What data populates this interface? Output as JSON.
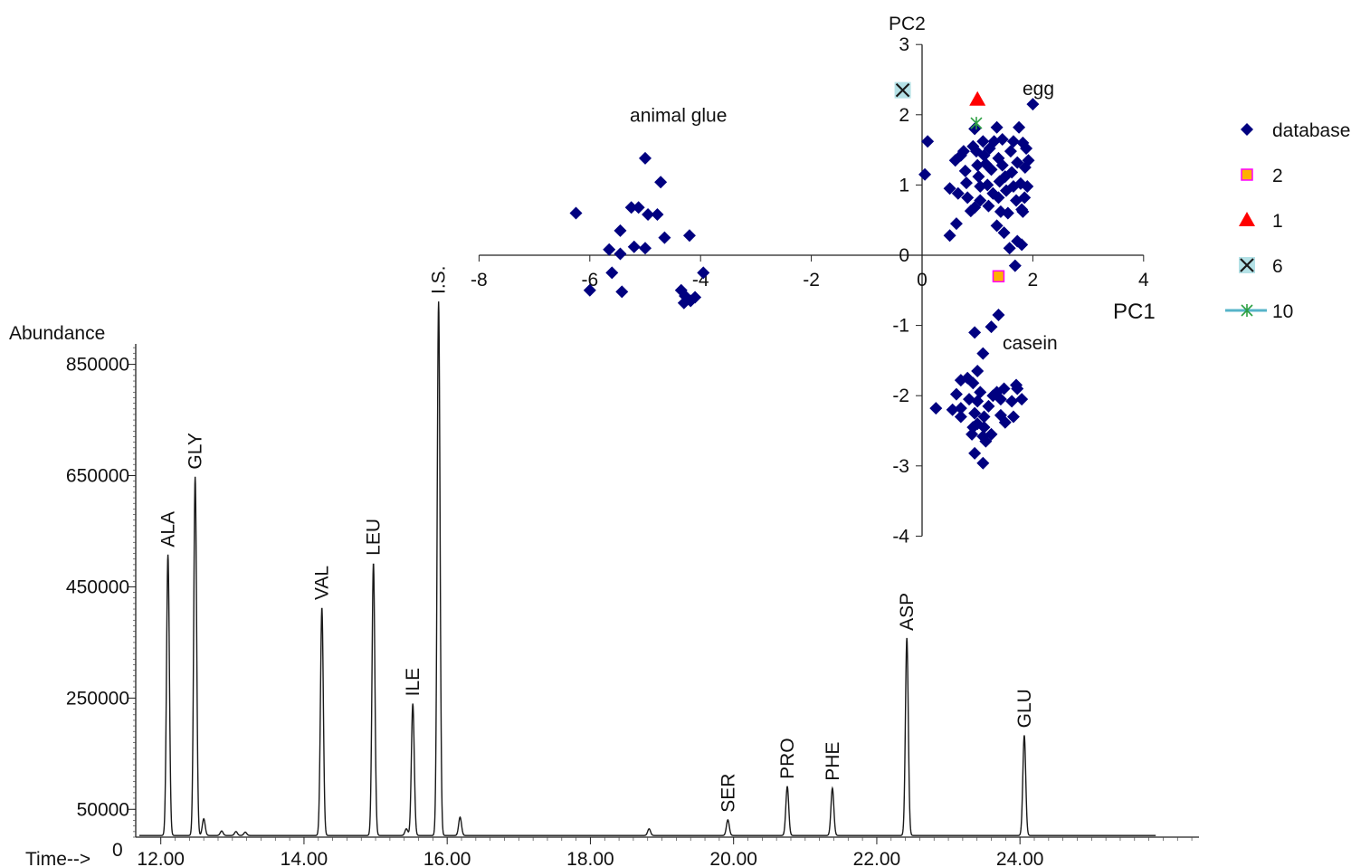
{
  "chart_data": [
    {
      "type": "line",
      "title": "",
      "ylabel": "Abundance",
      "xlabel": "Time-->",
      "y_zero_label": "0",
      "xlim": [
        11.65,
        26.5
      ],
      "ylim": [
        0,
        960000
      ],
      "x_ticks": [
        "12.00",
        "14.00",
        "16.00",
        "18.00",
        "20.00",
        "22.00",
        "24.00"
      ],
      "y_ticks": [
        "50000",
        "250000",
        "450000",
        "650000",
        "850000"
      ],
      "baseline": 3000,
      "peaks": [
        {
          "label": "ALA",
          "t": 12.1,
          "h": 505000
        },
        {
          "label": "GLY",
          "t": 12.48,
          "h": 645000
        },
        {
          "label": "VAL",
          "t": 14.25,
          "h": 410000
        },
        {
          "label": "LEU",
          "t": 14.97,
          "h": 490000
        },
        {
          "label": "ILE",
          "t": 15.52,
          "h": 237000
        },
        {
          "label": "I.S.",
          "t": 15.88,
          "h": 960000
        },
        {
          "label": "SER",
          "t": 19.92,
          "h": 28000
        },
        {
          "label": "PRO",
          "t": 20.75,
          "h": 88000
        },
        {
          "label": "PHE",
          "t": 21.38,
          "h": 85000
        },
        {
          "label": "ASP",
          "t": 22.42,
          "h": 355000
        },
        {
          "label": "GLU",
          "t": 24.06,
          "h": 180000
        }
      ],
      "minor_peaks": [
        {
          "t": 12.6,
          "h": 30000
        },
        {
          "t": 12.85,
          "h": 8000
        },
        {
          "t": 13.05,
          "h": 7000
        },
        {
          "t": 13.18,
          "h": 6000
        },
        {
          "t": 15.43,
          "h": 12000
        },
        {
          "t": 16.18,
          "h": 33000
        },
        {
          "t": 18.82,
          "h": 12000
        }
      ]
    },
    {
      "type": "scatter",
      "title": "",
      "xlabel": "PC1",
      "ylabel": "PC2",
      "xlim": [
        -8,
        4
      ],
      "ylim": [
        -4,
        3
      ],
      "x_ticks": [
        "-8",
        "-6",
        "-4",
        "-2",
        "0",
        "2",
        "4"
      ],
      "y_ticks": [
        "-4",
        "-3",
        "-2",
        "-1",
        "0",
        "1",
        "2",
        "3"
      ],
      "annotations": [
        {
          "text": "animal glue",
          "x": -4.4,
          "y": 1.9
        },
        {
          "text": "egg",
          "x": 2.1,
          "y": 2.28
        },
        {
          "text": "casein",
          "x": 1.95,
          "y": -1.34
        }
      ],
      "legend_position": "right",
      "series": [
        {
          "name": "database",
          "marker": "diamond",
          "color": "#000080",
          "points": [
            [
              -6.25,
              0.6
            ],
            [
              -5.0,
              1.38
            ],
            [
              -4.72,
              1.04
            ],
            [
              -5.45,
              0.35
            ],
            [
              -5.25,
              0.68
            ],
            [
              -5.12,
              0.68
            ],
            [
              -4.95,
              0.58
            ],
            [
              -4.78,
              0.58
            ],
            [
              -4.65,
              0.25
            ],
            [
              -5.2,
              0.12
            ],
            [
              -5.0,
              0.1
            ],
            [
              -5.65,
              0.08
            ],
            [
              -5.45,
              0.02
            ],
            [
              -4.2,
              0.28
            ],
            [
              -3.95,
              -0.25
            ],
            [
              -5.6,
              -0.25
            ],
            [
              -5.42,
              -0.52
            ],
            [
              -6.0,
              -0.5
            ],
            [
              -4.35,
              -0.5
            ],
            [
              -4.28,
              -0.58
            ],
            [
              -4.1,
              -0.6
            ],
            [
              -4.18,
              -0.65
            ],
            [
              -4.3,
              -0.68
            ],
            [
              0.1,
              1.62
            ],
            [
              0.05,
              1.15
            ],
            [
              0.5,
              0.95
            ],
            [
              0.5,
              0.28
            ],
            [
              0.6,
              1.35
            ],
            [
              0.65,
              0.88
            ],
            [
              0.62,
              0.45
            ],
            [
              0.7,
              1.42
            ],
            [
              0.75,
              1.48
            ],
            [
              0.78,
              1.2
            ],
            [
              0.8,
              1.03
            ],
            [
              0.82,
              0.82
            ],
            [
              0.88,
              0.63
            ],
            [
              0.92,
              1.55
            ],
            [
              0.95,
              1.8
            ],
            [
              0.98,
              1.48
            ],
            [
              1.0,
              1.28
            ],
            [
              1.02,
              1.12
            ],
            [
              1.05,
              0.98
            ],
            [
              1.05,
              0.78
            ],
            [
              1.1,
              1.62
            ],
            [
              1.12,
              1.42
            ],
            [
              1.15,
              1.3
            ],
            [
              1.18,
              1.0
            ],
            [
              1.2,
              0.7
            ],
            [
              1.22,
              1.52
            ],
            [
              1.25,
              1.22
            ],
            [
              1.28,
              0.88
            ],
            [
              1.3,
              1.62
            ],
            [
              1.35,
              1.82
            ],
            [
              1.38,
              1.38
            ],
            [
              1.4,
              1.05
            ],
            [
              1.42,
              0.62
            ],
            [
              1.45,
              1.28
            ],
            [
              1.48,
              0.32
            ],
            [
              1.5,
              1.12
            ],
            [
              1.52,
              0.92
            ],
            [
              1.55,
              0.6
            ],
            [
              1.58,
              0.1
            ],
            [
              1.6,
              1.48
            ],
            [
              1.62,
              1.18
            ],
            [
              1.65,
              0.98
            ],
            [
              1.68,
              -0.15
            ],
            [
              1.7,
              0.78
            ],
            [
              1.72,
              1.32
            ],
            [
              1.75,
              1.82
            ],
            [
              1.78,
              1.02
            ],
            [
              1.8,
              0.65
            ],
            [
              1.82,
              1.6
            ],
            [
              1.85,
              0.82
            ],
            [
              1.86,
              1.25
            ],
            [
              1.88,
              1.52
            ],
            [
              1.9,
              0.98
            ],
            [
              1.92,
              1.35
            ],
            [
              1.8,
              0.15
            ],
            [
              1.72,
              0.2
            ],
            [
              1.82,
              0.62
            ],
            [
              1.65,
              1.62
            ],
            [
              1.45,
              1.65
            ],
            [
              1.35,
              0.42
            ],
            [
              2.0,
              2.15
            ],
            [
              1.38,
              0.82
            ],
            [
              0.95,
              0.68
            ],
            [
              1.38,
              -0.85
            ],
            [
              0.95,
              -1.1
            ],
            [
              1.25,
              -1.02
            ],
            [
              1.1,
              -1.4
            ],
            [
              1.0,
              -1.65
            ],
            [
              0.7,
              -1.78
            ],
            [
              0.82,
              -1.75
            ],
            [
              0.92,
              -1.82
            ],
            [
              1.7,
              -1.85
            ],
            [
              1.72,
              -1.9
            ],
            [
              1.48,
              -1.9
            ],
            [
              1.35,
              -1.95
            ],
            [
              1.05,
              -1.95
            ],
            [
              1.28,
              -2.0
            ],
            [
              0.62,
              -1.98
            ],
            [
              0.85,
              -2.05
            ],
            [
              1.0,
              -2.08
            ],
            [
              1.42,
              -2.05
            ],
            [
              1.62,
              -2.08
            ],
            [
              1.8,
              -2.05
            ],
            [
              0.25,
              -2.18
            ],
            [
              0.55,
              -2.2
            ],
            [
              0.7,
              -2.18
            ],
            [
              0.95,
              -2.25
            ],
            [
              1.2,
              -2.15
            ],
            [
              0.7,
              -2.3
            ],
            [
              1.12,
              -2.3
            ],
            [
              1.42,
              -2.28
            ],
            [
              1.65,
              -2.3
            ],
            [
              0.92,
              -2.45
            ],
            [
              1.0,
              -2.4
            ],
            [
              1.12,
              -2.45
            ],
            [
              1.25,
              -2.55
            ],
            [
              0.9,
              -2.55
            ],
            [
              1.1,
              -2.58
            ],
            [
              1.15,
              -2.65
            ],
            [
              0.95,
              -2.82
            ],
            [
              1.1,
              -2.96
            ],
            [
              1.5,
              -2.38
            ]
          ]
        },
        {
          "name": "2",
          "marker": "square",
          "color": "#FFB000",
          "edge": "#FF00FF",
          "points": [
            [
              1.38,
              -0.3
            ]
          ]
        },
        {
          "name": "1",
          "marker": "triangle",
          "color": "#FF0000",
          "points": [
            [
              1.0,
              2.22
            ]
          ]
        },
        {
          "name": "6",
          "marker": "x",
          "color": "#1a1a1a",
          "fill": "#B4E1E6",
          "points": [
            [
              -0.35,
              2.35
            ]
          ]
        },
        {
          "name": "10",
          "marker": "asterisk",
          "color": "#2EA043",
          "line": "#56B4C8",
          "points": [
            [
              0.98,
              1.88
            ]
          ]
        }
      ]
    }
  ]
}
